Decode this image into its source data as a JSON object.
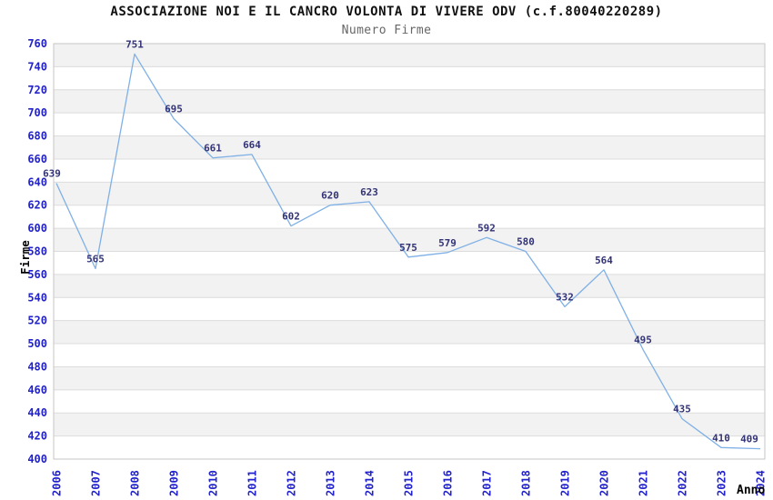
{
  "chart_data": {
    "type": "line",
    "title": "ASSOCIAZIONE NOI E IL CANCRO VOLONTA DI VIVERE ODV (c.f.80040220289)",
    "subtitle": "Numero Firme",
    "xlabel": "Anno",
    "ylabel": "Firme",
    "x": [
      "2006",
      "2007",
      "2008",
      "2009",
      "2010",
      "2011",
      "2012",
      "2013",
      "2014",
      "2015",
      "2016",
      "2017",
      "2018",
      "2019",
      "2020",
      "2021",
      "2022",
      "2023",
      "2024"
    ],
    "series": [
      {
        "name": "Numero Firme",
        "values": [
          639,
          565,
          751,
          695,
          661,
          664,
          602,
          620,
          623,
          575,
          579,
          592,
          580,
          532,
          564,
          495,
          435,
          410,
          409
        ]
      }
    ],
    "ylim": [
      400,
      760
    ],
    "ytick_step": 20,
    "grid": "horizontal gridlines with alternating gray/white bands",
    "legend_position": "none",
    "point_labels_visible": true,
    "colors": {
      "line": "#7fb0e6",
      "tick_labels": "#2222cc",
      "point_labels": "#333377",
      "band_gray": "#f2f2f2",
      "gridline": "#dcdcdc",
      "plot_border": "#c6c6c6",
      "axis_title": "#333333",
      "title_text": "#111111",
      "subtitle_text": "#666666"
    }
  }
}
